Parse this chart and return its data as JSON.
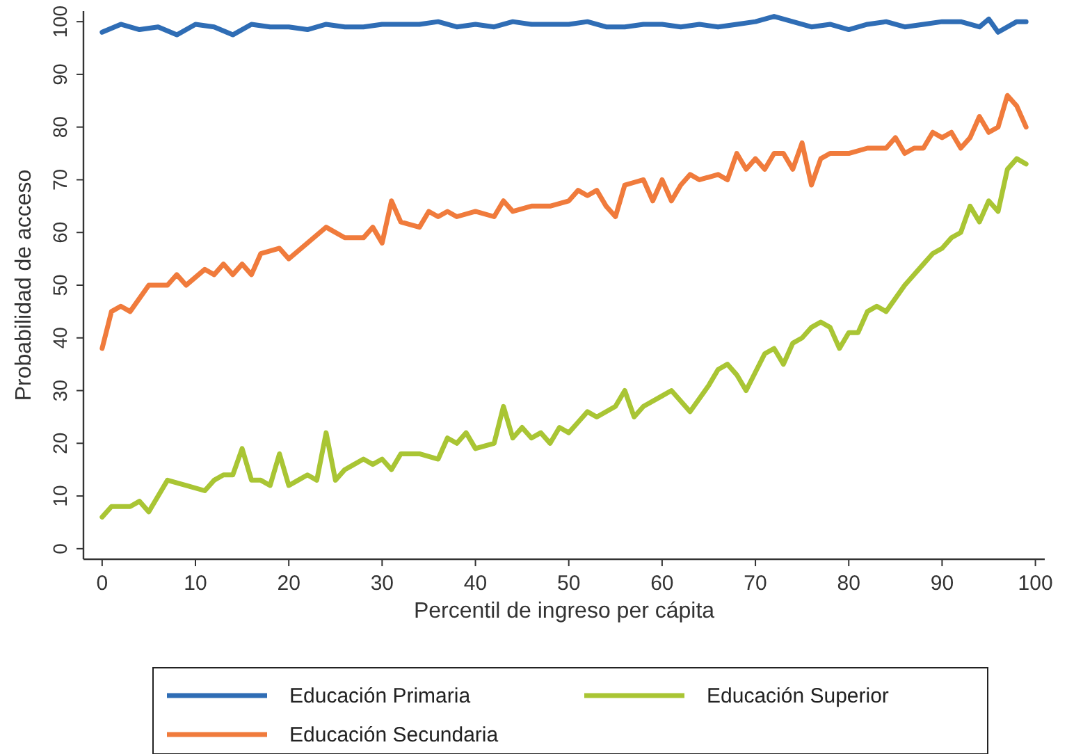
{
  "chart_data": {
    "type": "line",
    "xlabel": "Percentil de ingreso per cápita",
    "ylabel": "Probabilidad de acceso",
    "xlim": [
      -2,
      101
    ],
    "ylim": [
      -2,
      102
    ],
    "xticks": [
      0,
      10,
      20,
      30,
      40,
      50,
      60,
      70,
      80,
      90,
      100
    ],
    "yticks": [
      0,
      10,
      20,
      30,
      40,
      50,
      60,
      70,
      80,
      90,
      100
    ],
    "grid": false,
    "legend": "bottom",
    "line_style": "solid",
    "series": [
      {
        "name": "Educación Primaria",
        "color": "#2f6db5",
        "x": [
          0,
          2,
          4,
          6,
          8,
          10,
          12,
          14,
          16,
          18,
          20,
          22,
          24,
          26,
          28,
          30,
          32,
          34,
          36,
          38,
          40,
          42,
          44,
          46,
          48,
          50,
          52,
          54,
          56,
          58,
          60,
          62,
          64,
          66,
          68,
          70,
          72,
          74,
          76,
          78,
          80,
          82,
          84,
          86,
          88,
          90,
          92,
          94,
          95,
          96,
          98,
          99
        ],
        "values": [
          98,
          99.5,
          98.5,
          99,
          97.5,
          99.5,
          99,
          97.5,
          99.5,
          99,
          99,
          98.5,
          99.5,
          99,
          99,
          99.5,
          99.5,
          99.5,
          100,
          99,
          99.5,
          99,
          100,
          99.5,
          99.5,
          99.5,
          100,
          99,
          99,
          99.5,
          99.5,
          99,
          99.5,
          99,
          99.5,
          100,
          101,
          100,
          99,
          99.5,
          98.5,
          99.5,
          100,
          99,
          99.5,
          100,
          100,
          99,
          100.5,
          98,
          100,
          100
        ]
      },
      {
        "name": "Educación Secundaria",
        "color": "#f07b3c",
        "x": [
          0,
          1,
          2,
          3,
          5,
          7,
          8,
          9,
          11,
          12,
          13,
          14,
          15,
          16,
          17,
          19,
          20,
          22,
          24,
          26,
          28,
          29,
          30,
          31,
          32,
          34,
          35,
          36,
          37,
          38,
          40,
          42,
          43,
          44,
          46,
          48,
          50,
          51,
          52,
          53,
          54,
          55,
          56,
          57,
          58,
          59,
          60,
          61,
          62,
          63,
          64,
          66,
          67,
          68,
          69,
          70,
          71,
          72,
          73,
          74,
          75,
          76,
          77,
          78,
          79,
          80,
          82,
          84,
          85,
          86,
          87,
          88,
          89,
          90,
          91,
          92,
          93,
          94,
          95,
          96,
          97,
          98,
          99
        ],
        "values": [
          38,
          45,
          46,
          45,
          50,
          50,
          52,
          50,
          53,
          52,
          54,
          52,
          54,
          52,
          56,
          57,
          55,
          58,
          61,
          59,
          59,
          61,
          58,
          66,
          62,
          61,
          64,
          63,
          64,
          63,
          64,
          63,
          66,
          64,
          65,
          65,
          66,
          68,
          67,
          68,
          65,
          63,
          69,
          69.5,
          70,
          66,
          70,
          66,
          69,
          71,
          70,
          71,
          70,
          75,
          72,
          74,
          72,
          75,
          75,
          72,
          77,
          69,
          74,
          75,
          75,
          75,
          76,
          76,
          78,
          75,
          76,
          76,
          79,
          78,
          79,
          76,
          78,
          82,
          79,
          80,
          86,
          84,
          80
        ]
      },
      {
        "name": "Educación Superior",
        "color": "#a9c534",
        "x": [
          0,
          1,
          2,
          3,
          4,
          5,
          7,
          9,
          11,
          12,
          13,
          14,
          15,
          16,
          17,
          18,
          19,
          20,
          21,
          22,
          23,
          24,
          25,
          26,
          27,
          28,
          29,
          30,
          31,
          32,
          34,
          36,
          37,
          38,
          39,
          40,
          42,
          43,
          44,
          45,
          46,
          47,
          48,
          49,
          50,
          51,
          52,
          53,
          55,
          56,
          57,
          58,
          60,
          61,
          63,
          65,
          66,
          67,
          68,
          69,
          71,
          72,
          73,
          74,
          75,
          76,
          77,
          78,
          79,
          80,
          81,
          82,
          83,
          84,
          86,
          88,
          89,
          90,
          91,
          92,
          93,
          94,
          95,
          96,
          97,
          98,
          99
        ],
        "values": [
          6,
          8,
          8,
          8,
          9,
          7,
          13,
          12,
          11,
          13,
          14,
          14,
          19,
          13,
          13,
          12,
          18,
          12,
          13,
          14,
          13,
          22,
          13,
          15,
          16,
          17,
          16,
          17,
          15,
          18,
          18,
          17,
          21,
          20,
          22,
          19,
          20,
          27,
          21,
          23,
          21,
          22,
          20,
          23,
          22,
          24,
          26,
          25,
          27,
          30,
          25,
          27,
          29,
          30,
          26,
          31,
          34,
          35,
          33,
          30,
          37,
          38,
          35,
          39,
          40,
          42,
          43,
          42,
          38,
          41,
          41,
          45,
          46,
          45,
          50,
          54,
          56,
          57,
          59,
          60,
          65,
          62,
          66,
          64,
          72,
          74,
          73
        ]
      }
    ]
  }
}
